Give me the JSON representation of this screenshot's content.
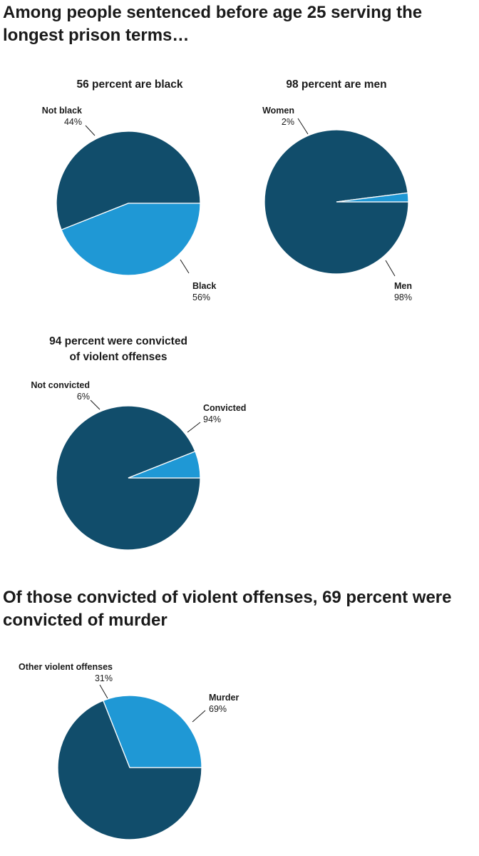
{
  "headings": {
    "main": "Among people sentenced before age 25 serving the longest prison terms…",
    "secondary": "Of those convicted of violent offenses, 69 percent were convicted of murder"
  },
  "colors": {
    "dark": "#114d6b",
    "light": "#1f98d5",
    "stroke": "#ffffff"
  },
  "chart_data": [
    {
      "type": "pie",
      "title_lines": [
        "56 percent are black"
      ],
      "slices": [
        {
          "name": "Black",
          "value": 56,
          "label": "56%",
          "color": "#114d6b"
        },
        {
          "name": "Not black",
          "value": 44,
          "label": "44%",
          "color": "#1f98d5"
        }
      ]
    },
    {
      "type": "pie",
      "title_lines": [
        "98 percent are men"
      ],
      "slices": [
        {
          "name": "Men",
          "value": 98,
          "label": "98%",
          "color": "#114d6b"
        },
        {
          "name": "Women",
          "value": 2,
          "label": "2%",
          "color": "#1f98d5"
        }
      ]
    },
    {
      "type": "pie",
      "title_lines": [
        "94 percent were convicted",
        "of violent offenses"
      ],
      "slices": [
        {
          "name": "Convicted",
          "value": 94,
          "label": "94%",
          "color": "#114d6b"
        },
        {
          "name": "Not convicted",
          "value": 6,
          "label": "6%",
          "color": "#1f98d5"
        }
      ]
    },
    {
      "type": "pie",
      "title_lines": [],
      "slices": [
        {
          "name": "Murder",
          "value": 69,
          "label": "69%",
          "color": "#114d6b"
        },
        {
          "name": "Other violent offenses",
          "value": 31,
          "label": "31%",
          "color": "#1f98d5"
        }
      ]
    }
  ]
}
